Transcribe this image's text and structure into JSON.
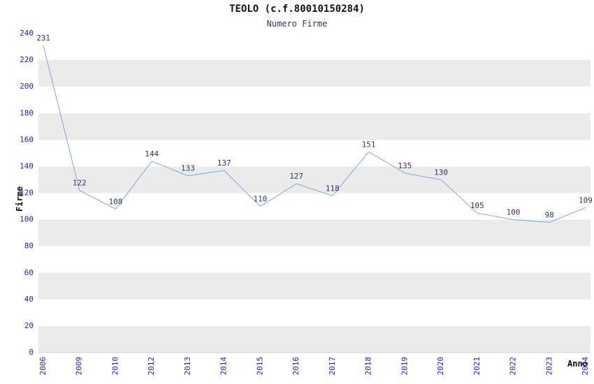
{
  "header": {
    "title": "TEOLO (c.f.80010150284)",
    "subtitle": "Numero Firme"
  },
  "chart_data": {
    "type": "line",
    "title": "TEOLO (c.f.80010150284)",
    "subtitle": "Numero Firme",
    "xlabel": "Anno",
    "ylabel": "Firme",
    "categories": [
      "2006",
      "2009",
      "2010",
      "2012",
      "2013",
      "2014",
      "2015",
      "2016",
      "2017",
      "2018",
      "2019",
      "2020",
      "2021",
      "2022",
      "2023",
      "2024"
    ],
    "values": [
      231,
      122,
      108,
      144,
      133,
      137,
      110,
      127,
      118,
      151,
      135,
      130,
      105,
      100,
      98,
      109
    ],
    "ylim": [
      0,
      240
    ],
    "ytick_step": 20,
    "grid": "horizontal-bands",
    "legend": "none",
    "line_color": "#7aa9d6",
    "data_label_color": "#333366",
    "tick_label_color": "#2222cc",
    "band_color": "#ebebeb",
    "axis_line_color": "#cccccc"
  }
}
